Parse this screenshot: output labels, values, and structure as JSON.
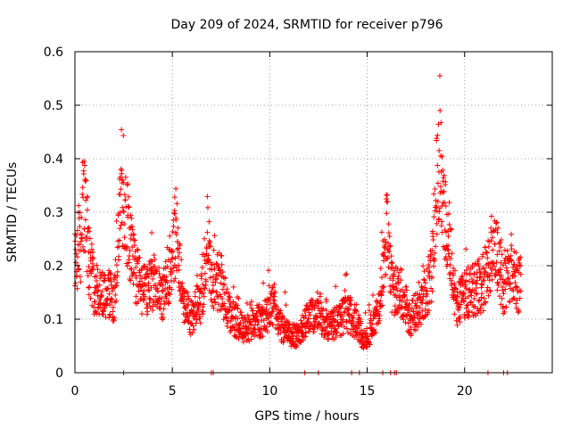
{
  "chart_data": {
    "type": "scatter",
    "title": "Day 209 of 2024, SRMTID for receiver p796",
    "xlabel": "GPS time / hours",
    "ylabel": "SRMTID / TECUs",
    "xlim": [
      0,
      24.5
    ],
    "ylim": [
      0,
      0.6
    ],
    "xticks": [
      0,
      5,
      10,
      15,
      20
    ],
    "yticks": [
      0,
      0.1,
      0.2,
      0.3,
      0.4,
      0.5,
      0.6
    ],
    "ytick_labels": [
      "0",
      "0.1",
      "0.2",
      "0.3",
      "0.4",
      "0.5",
      "0.6"
    ],
    "grid": true,
    "marker": "+",
    "series": [
      {
        "name": "SRMTID",
        "color": "#ff0000",
        "trend": [
          [
            0.0,
            0.22
          ],
          [
            0.3,
            0.25
          ],
          [
            0.5,
            0.33
          ],
          [
            0.7,
            0.22
          ],
          [
            1.0,
            0.16
          ],
          [
            1.5,
            0.15
          ],
          [
            2.0,
            0.14
          ],
          [
            2.2,
            0.2
          ],
          [
            2.35,
            0.38
          ],
          [
            2.6,
            0.3
          ],
          [
            2.8,
            0.25
          ],
          [
            3.0,
            0.2
          ],
          [
            3.5,
            0.15
          ],
          [
            4.0,
            0.17
          ],
          [
            4.5,
            0.14
          ],
          [
            5.0,
            0.22
          ],
          [
            5.2,
            0.27
          ],
          [
            5.5,
            0.13
          ],
          [
            6.0,
            0.1
          ],
          [
            6.5,
            0.14
          ],
          [
            6.8,
            0.25
          ],
          [
            7.0,
            0.17
          ],
          [
            7.5,
            0.17
          ],
          [
            7.8,
            0.12
          ],
          [
            8.2,
            0.1
          ],
          [
            8.7,
            0.08
          ],
          [
            9.2,
            0.09
          ],
          [
            9.7,
            0.1
          ],
          [
            10.2,
            0.13
          ],
          [
            10.5,
            0.09
          ],
          [
            11.0,
            0.07
          ],
          [
            11.5,
            0.07
          ],
          [
            12.0,
            0.1
          ],
          [
            12.5,
            0.12
          ],
          [
            13.0,
            0.08
          ],
          [
            13.5,
            0.1
          ],
          [
            14.0,
            0.11
          ],
          [
            14.5,
            0.09
          ],
          [
            14.8,
            0.06
          ],
          [
            15.2,
            0.08
          ],
          [
            15.5,
            0.1
          ],
          [
            15.8,
            0.18
          ],
          [
            16.0,
            0.27
          ],
          [
            16.3,
            0.15
          ],
          [
            16.8,
            0.15
          ],
          [
            17.2,
            0.1
          ],
          [
            17.6,
            0.12
          ],
          [
            18.0,
            0.15
          ],
          [
            18.3,
            0.18
          ],
          [
            18.55,
            0.35
          ],
          [
            18.75,
            0.45
          ],
          [
            18.9,
            0.29
          ],
          [
            19.2,
            0.25
          ],
          [
            19.6,
            0.12
          ],
          [
            20.0,
            0.15
          ],
          [
            20.4,
            0.15
          ],
          [
            21.0,
            0.17
          ],
          [
            21.5,
            0.24
          ],
          [
            22.0,
            0.16
          ],
          [
            22.4,
            0.2
          ],
          [
            22.7,
            0.15
          ],
          [
            22.9,
            0.2
          ]
        ],
        "zero_points": [
          2.5,
          7.0,
          7.1,
          11.8,
          12.5,
          14.2,
          14.6,
          15.8,
          16.2,
          16.4,
          16.5,
          21.2,
          22.0,
          22.2
        ]
      }
    ]
  }
}
